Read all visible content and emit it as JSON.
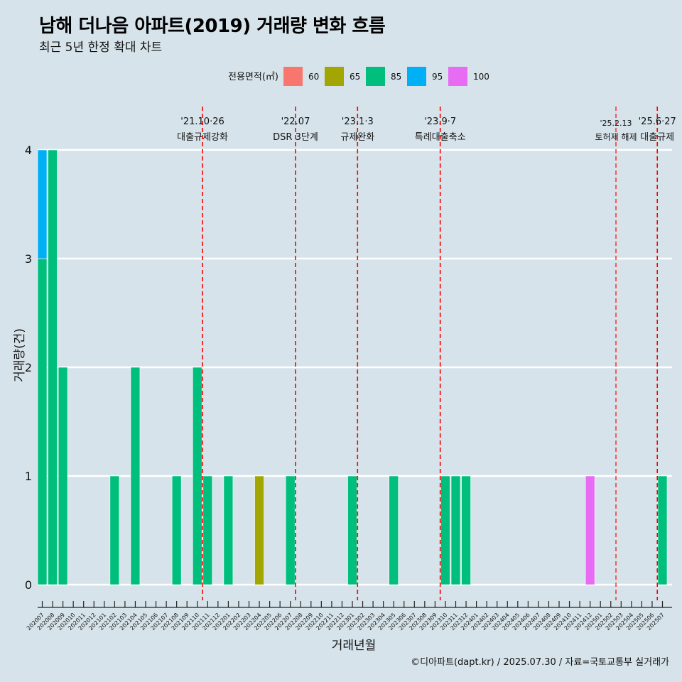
{
  "title": "남해 더나음 아파트(2019) 거래량 변화 흐름",
  "subtitle": "최근 5년 한정 확대 차트",
  "caption": "©디아파트(dapt.kr) / 2025.07.30 / 자료=국토교통부 실거래가",
  "chart_data": {
    "type": "bar",
    "stacked": true,
    "xlabel": "거래년월",
    "ylabel": "거래량(건)",
    "ylim": [
      0,
      4
    ],
    "yticks": [
      0,
      1,
      2,
      3,
      4
    ],
    "grid": true,
    "legend_title": "전용면적(㎡)",
    "legend_position": "top",
    "categories": [
      "202007",
      "202008",
      "202009",
      "202010",
      "202011",
      "202012",
      "202101",
      "202102",
      "202103",
      "202104",
      "202105",
      "202106",
      "202107",
      "202108",
      "202109",
      "202110",
      "202111",
      "202112",
      "202201",
      "202202",
      "202203",
      "202204",
      "202205",
      "202206",
      "202207",
      "202208",
      "202209",
      "202210",
      "202211",
      "202212",
      "202301",
      "202302",
      "202303",
      "202304",
      "202305",
      "202306",
      "202307",
      "202308",
      "202309",
      "202310",
      "202311",
      "202312",
      "202401",
      "202402",
      "202403",
      "202404",
      "202405",
      "202406",
      "202407",
      "202408",
      "202409",
      "202410",
      "202411",
      "202412",
      "202501",
      "202502",
      "202503",
      "202504",
      "202505",
      "202506",
      "202507"
    ],
    "series": [
      {
        "name": "60",
        "color": "#f8766d",
        "values": [
          0,
          0,
          0,
          0,
          0,
          0,
          0,
          0,
          0,
          0,
          0,
          0,
          0,
          0,
          0,
          0,
          0,
          0,
          0,
          0,
          0,
          0,
          0,
          0,
          0,
          0,
          0,
          0,
          0,
          0,
          0,
          0,
          0,
          0,
          0,
          0,
          0,
          0,
          0,
          0,
          0,
          0,
          0,
          0,
          0,
          0,
          0,
          0,
          0,
          0,
          0,
          0,
          0,
          0,
          0,
          0,
          0,
          0,
          0,
          0,
          0
        ]
      },
      {
        "name": "65",
        "color": "#a3a500",
        "values": [
          0,
          0,
          0,
          0,
          0,
          0,
          0,
          0,
          0,
          0,
          0,
          0,
          0,
          0,
          0,
          0,
          0,
          0,
          0,
          0,
          0,
          1,
          0,
          0,
          0,
          0,
          0,
          0,
          0,
          0,
          0,
          0,
          0,
          0,
          0,
          0,
          0,
          0,
          0,
          0,
          0,
          0,
          0,
          0,
          0,
          0,
          0,
          0,
          0,
          0,
          0,
          0,
          0,
          0,
          0,
          0,
          0,
          0,
          0,
          0,
          0
        ]
      },
      {
        "name": "85",
        "color": "#00bf7d",
        "values": [
          3,
          4,
          2,
          0,
          0,
          0,
          0,
          1,
          0,
          2,
          0,
          0,
          0,
          1,
          0,
          2,
          1,
          0,
          1,
          0,
          0,
          0,
          0,
          0,
          1,
          0,
          0,
          0,
          0,
          0,
          1,
          0,
          0,
          0,
          1,
          0,
          0,
          0,
          0,
          1,
          1,
          1,
          0,
          0,
          0,
          0,
          0,
          0,
          0,
          0,
          0,
          0,
          0,
          0,
          0,
          0,
          0,
          0,
          0,
          0,
          1
        ]
      },
      {
        "name": "95",
        "color": "#00b0f6",
        "values": [
          1,
          0,
          0,
          0,
          0,
          0,
          0,
          0,
          0,
          0,
          0,
          0,
          0,
          0,
          0,
          0,
          0,
          0,
          0,
          0,
          0,
          0,
          0,
          0,
          0,
          0,
          0,
          0,
          0,
          0,
          0,
          0,
          0,
          0,
          0,
          0,
          0,
          0,
          0,
          0,
          0,
          0,
          0,
          0,
          0,
          0,
          0,
          0,
          0,
          0,
          0,
          0,
          0,
          0,
          0,
          0,
          0,
          0,
          0,
          0,
          0
        ]
      },
      {
        "name": "100",
        "color": "#e76bf3",
        "values": [
          0,
          0,
          0,
          0,
          0,
          0,
          0,
          0,
          0,
          0,
          0,
          0,
          0,
          0,
          0,
          0,
          0,
          0,
          0,
          0,
          0,
          0,
          0,
          0,
          0,
          0,
          0,
          0,
          0,
          0,
          0,
          0,
          0,
          0,
          0,
          0,
          0,
          0,
          0,
          0,
          0,
          0,
          0,
          0,
          0,
          0,
          0,
          0,
          0,
          0,
          0,
          0,
          0,
          1,
          0,
          0,
          0,
          0,
          0,
          0,
          0
        ]
      }
    ],
    "annotations": [
      {
        "x": "202110",
        "date": "'21.10·26",
        "label": "대출규제강화"
      },
      {
        "x": "202207",
        "date": "'22.07",
        "label": "DSR 3단계"
      },
      {
        "x": "202301",
        "date": "'23.1·3",
        "label": "규제완화"
      },
      {
        "x": "202309",
        "date": "'23.9·7",
        "label": "특례대출축소"
      },
      {
        "x": "202502",
        "date": "'25.2.13",
        "label": "토허제 해제"
      },
      {
        "x": "202506",
        "date": "'25.6·27",
        "label": "대출규제"
      }
    ],
    "annotation_color": "#ff0000"
  }
}
